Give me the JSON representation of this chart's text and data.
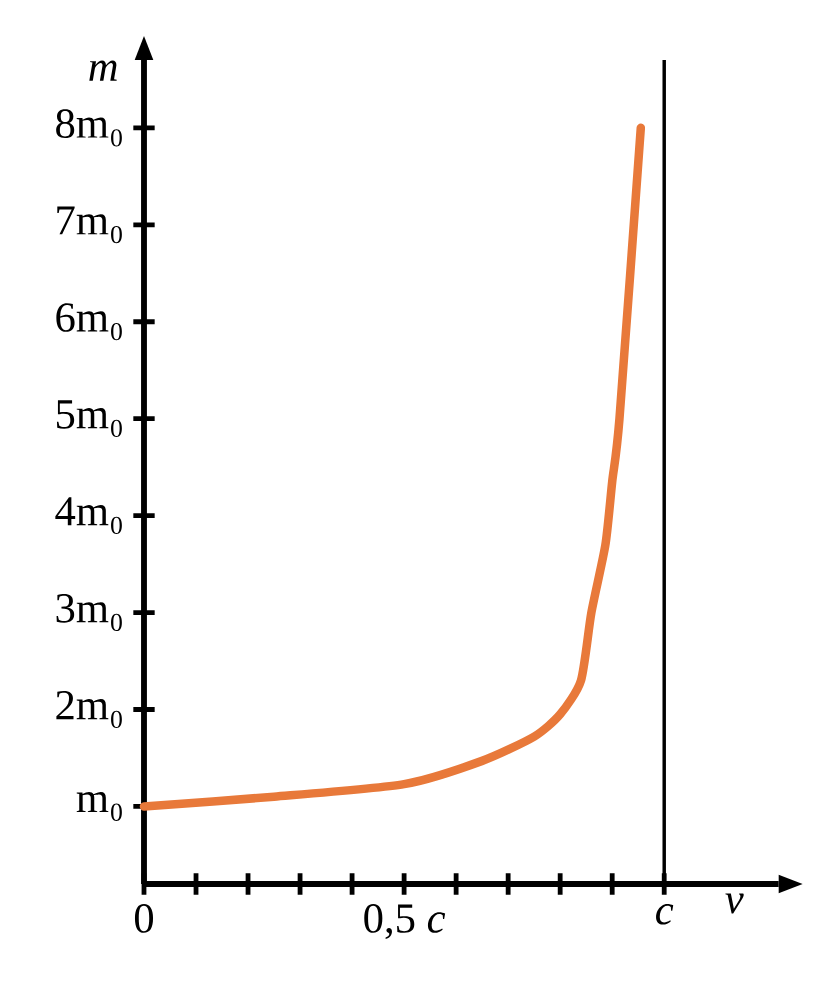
{
  "chart_data": {
    "type": "line",
    "xlabel": "*v*",
    "ylabel": "*m*",
    "x": [
      0,
      0.25,
      0.5,
      0.65,
      0.75,
      0.8,
      0.84,
      0.86,
      0.887,
      0.9,
      0.914,
      0.955
    ],
    "series": [
      {
        "color": "#e8793a",
        "values": [
          1,
          1.1,
          1.23,
          1.47,
          1.72,
          1.95,
          2.3,
          3.0,
          3.7,
          4.35,
          5,
          8
        ]
      }
    ],
    "xlim": [
      0,
      1.22
    ],
    "ylim": [
      0.2,
      8.7
    ],
    "xticks": [
      {
        "value": 0,
        "label": "0"
      },
      {
        "value": 0.1,
        "label": null
      },
      {
        "value": 0.2,
        "label": null
      },
      {
        "value": 0.3,
        "label": null
      },
      {
        "value": 0.4,
        "label": null
      },
      {
        "value": 0.5,
        "label": "0,5 *c*"
      },
      {
        "value": 0.6,
        "label": null
      },
      {
        "value": 0.7,
        "label": null
      },
      {
        "value": 0.8,
        "label": null
      },
      {
        "value": 0.9,
        "label": null
      },
      {
        "value": 1,
        "label": "*c*"
      }
    ],
    "yticks": [
      {
        "value": 1,
        "label": "m₀"
      },
      {
        "value": 2,
        "label": "2m₀"
      },
      {
        "value": 3,
        "label": "3m₀"
      },
      {
        "value": 4,
        "label": "4m₀"
      },
      {
        "value": 5,
        "label": "5m₀"
      },
      {
        "value": 6,
        "label": "6m₀"
      },
      {
        "value": 7,
        "label": "7m₀"
      },
      {
        "value": 8,
        "label": "8m₀"
      }
    ],
    "ref_lines": [
      {
        "axis": "x",
        "value": 1,
        "color": "#000000"
      }
    ],
    "grid": false,
    "marker": "none",
    "line_style": "solid"
  }
}
